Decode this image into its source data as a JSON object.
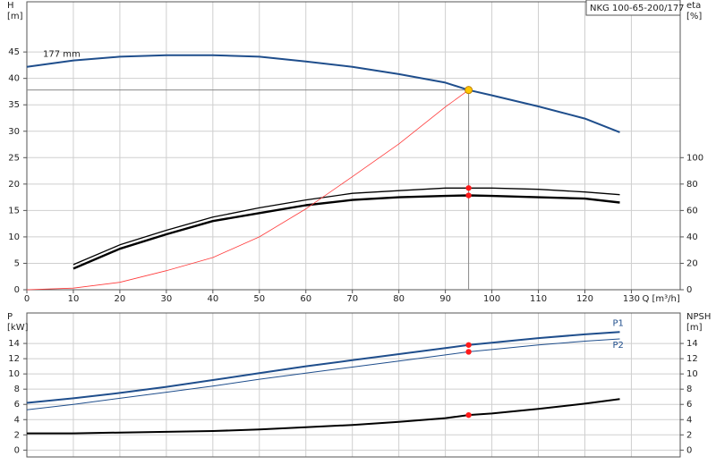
{
  "chart_data": [
    {
      "type": "line",
      "title": "NKG 100-65-200/177",
      "y_label": [
        "H",
        "[m]"
      ],
      "y2_label": [
        "eta",
        "[%]"
      ],
      "x_label": "Q [m³/h]",
      "annotation": "177 mm",
      "x": [
        0,
        10,
        20,
        30,
        40,
        50,
        60,
        70,
        80,
        90,
        95,
        100,
        110,
        120,
        127.5
      ],
      "xlim": [
        0,
        140.5
      ],
      "xticks": [
        0,
        10,
        20,
        30,
        40,
        50,
        60,
        70,
        80,
        90,
        100,
        110,
        120,
        130
      ],
      "ylim": [
        0,
        54.5
      ],
      "yticks": [
        0,
        5,
        10,
        15,
        20,
        25,
        30,
        35,
        40,
        45
      ],
      "y2lim": [
        0,
        218
      ],
      "y2ticks": [
        0,
        20,
        40,
        60,
        80,
        100
      ],
      "grid": true,
      "duty_point": {
        "q": 95,
        "h": 37.8
      },
      "series": [
        {
          "color": "#1f4e8c",
          "values": [
            42.2,
            43.4,
            44.1,
            44.4,
            44.4,
            44.1,
            43.2,
            42.2,
            40.8,
            39.2,
            37.8,
            36.8,
            34.7,
            32.4,
            29.8
          ]
        },
        {
          "color": "#000000",
          "axis": "y2",
          "values": [
            null,
            19,
            34,
            45,
            55,
            62,
            68,
            73,
            75,
            77,
            77,
            77,
            76,
            74,
            72
          ]
        },
        {
          "color": "#000000",
          "axis": "y2",
          "values": [
            null,
            16,
            31,
            42,
            52,
            58,
            64,
            68,
            70,
            71,
            71.4,
            71,
            70,
            69,
            66
          ]
        },
        {
          "color": "#ff3a3a",
          "values": [
            0,
            0.3,
            1.4,
            3.6,
            6.1,
            10,
            15.3,
            21.4,
            27.6,
            34.6,
            37.8,
            null,
            null,
            null,
            null
          ]
        }
      ]
    },
    {
      "type": "line",
      "y_label": [
        "P",
        "[kW]"
      ],
      "y2_label": [
        "NPSH",
        "[m]"
      ],
      "x": [
        0,
        10,
        20,
        30,
        40,
        50,
        60,
        70,
        80,
        90,
        95,
        100,
        110,
        120,
        127.5
      ],
      "xlim": [
        0,
        140.5
      ],
      "xticks": [
        0,
        10,
        20,
        30,
        40,
        50,
        60,
        70,
        80,
        90,
        100,
        110,
        120,
        130
      ],
      "ylim": [
        -0.9,
        18
      ],
      "yticks": [
        0,
        2,
        4,
        6,
        8,
        10,
        12,
        14
      ],
      "y2lim": [
        -0.9,
        18
      ],
      "y2ticks": [
        0,
        2,
        4,
        6,
        8,
        10,
        12,
        14
      ],
      "grid": true,
      "duty_q": 95,
      "series": [
        {
          "name": "P1",
          "color": "#1f4e8c",
          "values": [
            6.2,
            6.8,
            7.5,
            8.3,
            9.2,
            10.1,
            11.0,
            11.8,
            12.6,
            13.4,
            13.8,
            14.1,
            14.7,
            15.2,
            15.5
          ]
        },
        {
          "name": "P2",
          "color": "#1f4e8c",
          "values": [
            5.3,
            6.0,
            6.8,
            7.6,
            8.4,
            9.3,
            10.1,
            10.9,
            11.7,
            12.5,
            12.9,
            13.2,
            13.8,
            14.3,
            14.6
          ]
        },
        {
          "color": "#000000",
          "axis": "y2",
          "values": [
            2.2,
            2.2,
            2.3,
            2.4,
            2.5,
            2.7,
            3.0,
            3.3,
            3.7,
            4.2,
            4.6,
            4.8,
            5.4,
            6.1,
            6.7
          ]
        }
      ]
    }
  ]
}
